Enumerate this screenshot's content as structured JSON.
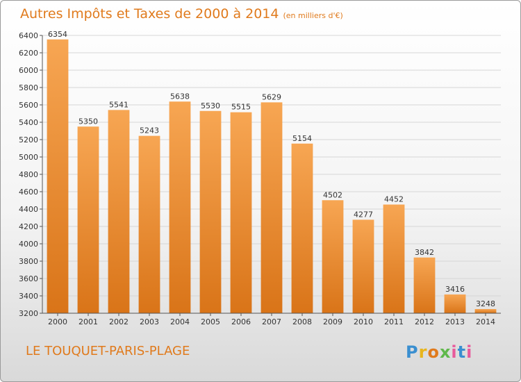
{
  "header": {
    "title": "Autres Impôts et Taxes de 2000 à 2014",
    "unit": "(en milliers d'€)"
  },
  "footer": {
    "place": "LE TOUQUET-PARIS-PLAGE",
    "logo": "Proxiti"
  },
  "colors": {
    "bar_light": "#f7a653",
    "bar_dark": "#d97418",
    "title": "#e07a1c"
  },
  "chart_data": {
    "type": "bar",
    "title": "Autres Impôts et Taxes de 2000 à 2014",
    "subtitle": "(en milliers d'€)",
    "xlabel": "",
    "ylabel": "",
    "categories": [
      "2000",
      "2001",
      "2002",
      "2003",
      "2004",
      "2005",
      "2006",
      "2007",
      "2008",
      "2009",
      "2010",
      "2011",
      "2012",
      "2013",
      "2014"
    ],
    "values": [
      6354,
      5350,
      5541,
      5243,
      5638,
      5530,
      5515,
      5629,
      5154,
      4502,
      4277,
      4452,
      3842,
      3416,
      3248
    ],
    "ylim": [
      3200,
      6400
    ],
    "yticks": [
      3200,
      3400,
      3600,
      3800,
      4000,
      4200,
      4400,
      4600,
      4800,
      5000,
      5200,
      5400,
      5600,
      5800,
      6000,
      6200,
      6400
    ],
    "grid": true,
    "legend": "none"
  }
}
